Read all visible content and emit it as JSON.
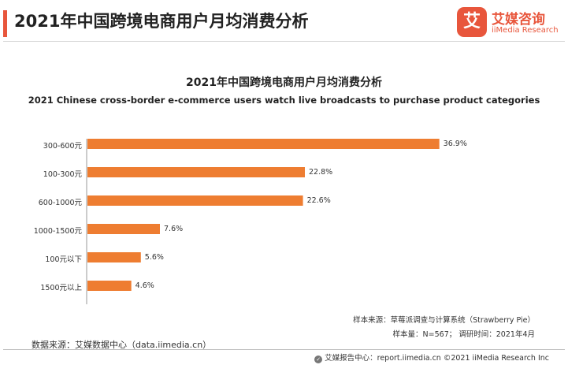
{
  "header": {
    "title": "2021年中国跨境电商用户月均消费分析",
    "accent_color": "#e8563c"
  },
  "logo": {
    "mark": "艾",
    "name_cn": "艾媒咨询",
    "name_en": "iiMedia Research",
    "icon": "iimedia-logo-icon"
  },
  "chart_data": {
    "type": "bar",
    "orientation": "horizontal",
    "title": "2021年中国跨境电商用户月均消费分析",
    "subtitle": "2021 Chinese cross-border e-commerce users watch live broadcasts to purchase product categories",
    "categories": [
      "300-600元",
      "100-300元",
      "600-1000元",
      "1000-1500元",
      "100元以下",
      "1500元以上"
    ],
    "values": [
      36.9,
      22.8,
      22.6,
      7.6,
      5.6,
      4.6
    ],
    "unit": "%",
    "xlim": [
      0,
      38
    ],
    "bar_color": "#ee7d31",
    "xlabel": "",
    "ylabel": "",
    "grid": false
  },
  "notes": {
    "source_line": "样本来源：草莓派调查与计算系统（Strawberry Pie）",
    "sample_line": "样本量：N=567； 调研时间：2021年4月"
  },
  "data_source": "数据来源：艾媒数据中心（data.iimedia.cn）",
  "footer": {
    "text": "艾媒报告中心：report.iimedia.cn  ©2021  iiMedia Research  Inc",
    "icon": "report-center-icon"
  }
}
